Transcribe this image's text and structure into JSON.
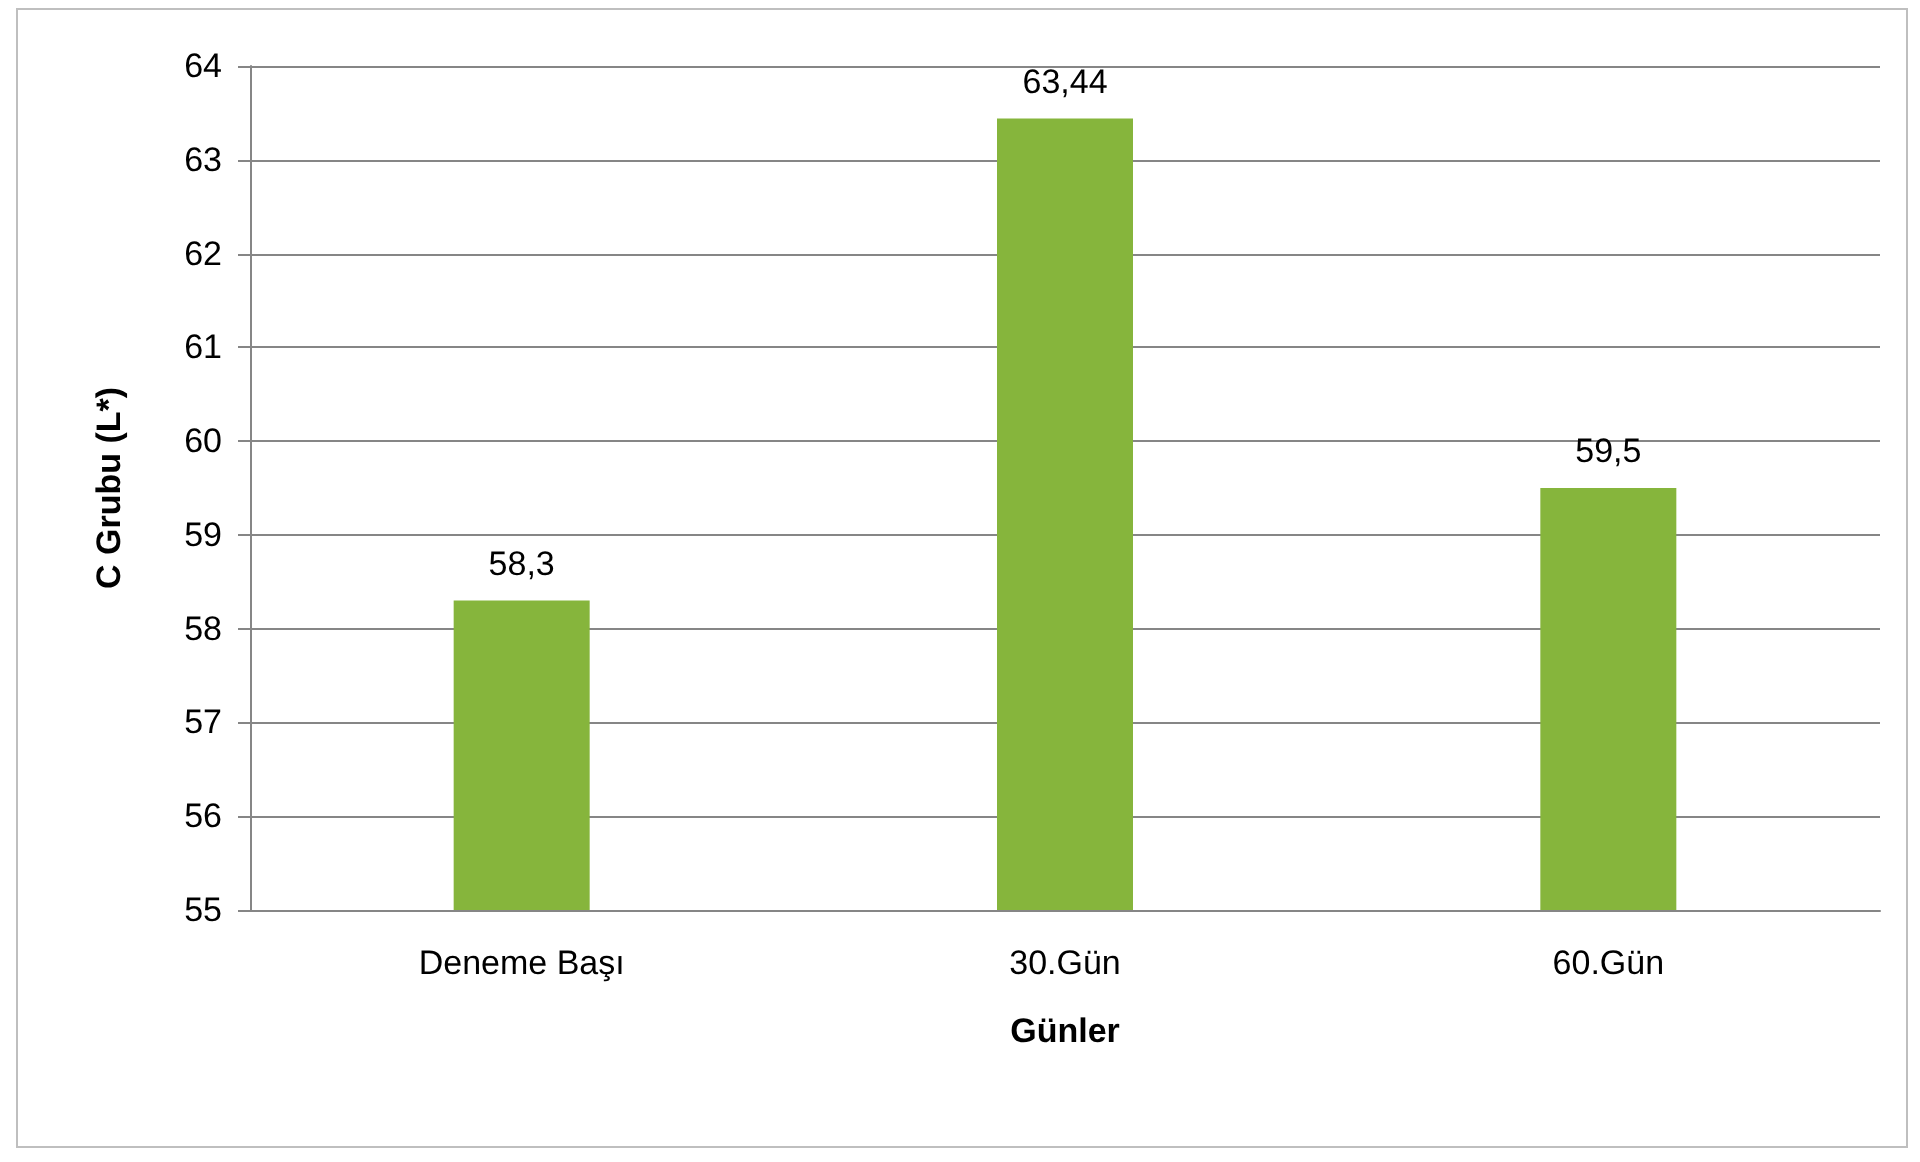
{
  "chart_data": {
    "type": "bar",
    "xlabel": "Günler",
    "ylabel": "C Grubu (L*)",
    "categories": [
      "Deneme Başı",
      "30.Gün",
      "60.Gün"
    ],
    "values": [
      58.3,
      63.44,
      59.5
    ],
    "value_labels": [
      "58,3",
      "63,44",
      "59,5"
    ],
    "color": "#86b53c",
    "ylim": [
      55,
      64
    ],
    "yticks": [
      55,
      56,
      57,
      58,
      59,
      60,
      61,
      62,
      63,
      64
    ],
    "grid": "y"
  }
}
